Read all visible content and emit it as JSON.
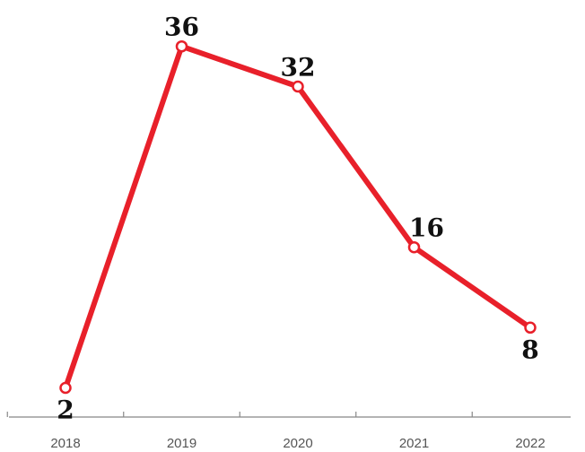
{
  "chart_data": {
    "type": "line",
    "categories": [
      "2018",
      "2019",
      "2020",
      "2021",
      "2022"
    ],
    "values": [
      2,
      36,
      32,
      16,
      8
    ],
    "data_labels": [
      "2",
      "36",
      "32",
      "16",
      "8"
    ],
    "title": "",
    "xlabel": "",
    "ylabel": "",
    "ylim": [
      0,
      40
    ],
    "grid": false,
    "legend": "none",
    "colors": {
      "line": "#e8202a",
      "marker_fill": "#ffffff",
      "axis": "#888888",
      "label": "#111111",
      "tick_label": "#555555"
    }
  }
}
